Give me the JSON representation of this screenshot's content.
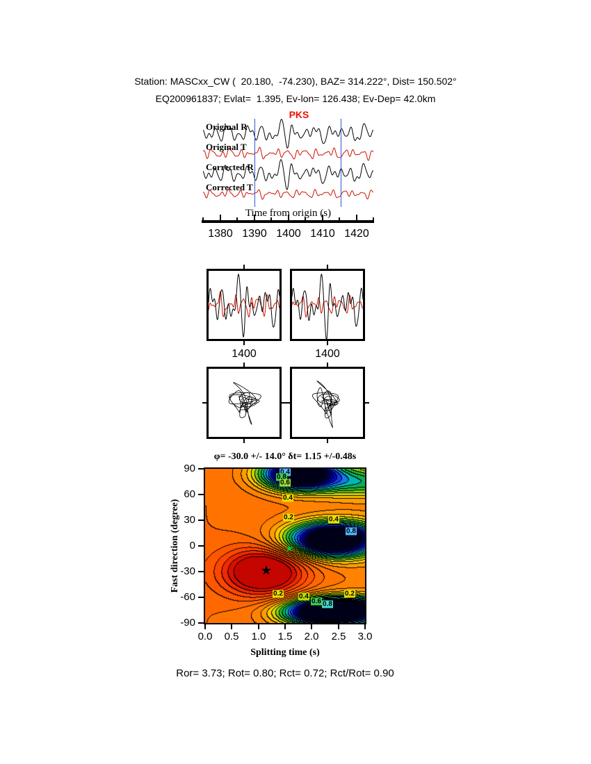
{
  "header": {
    "line1": "Station: MASCxx_CW (  20.180,  -74.230), BAZ= 314.222°, Dist= 150.502°",
    "line2": "EQ200961837; Evlat=  1.395, Ev-lon= 126.438; Ev-Dep= 42.0km"
  },
  "chart_data": [
    {
      "type": "line",
      "panel": "seismograms",
      "xlabel": "Time from origin (s)",
      "xlim": [
        1375,
        1425
      ],
      "xticks": [
        1380,
        1390,
        1400,
        1410,
        1420
      ],
      "phase_label": "PKS",
      "phase_color": "#ee1100",
      "window": [
        1390,
        1415.5
      ],
      "window_color": "#3355cc",
      "series": [
        {
          "name": "Original R",
          "color": "#000000",
          "comps": [
            [
              0.3,
              0.5,
              0.8
            ],
            [
              0.46,
              0.34,
              2.4
            ],
            [
              0.2,
              0.42,
              4.4
            ],
            [
              0.62,
              0.2,
              1.1
            ],
            [
              0.12,
              0.28,
              2.9
            ]
          ],
          "pulse": [
            1399.5,
            2.4,
            1.5,
            0.3,
            4.9
          ]
        },
        {
          "name": "Original T",
          "color": "#cc1100",
          "comps": [
            [
              0.36,
              0.3,
              1.9
            ],
            [
              0.55,
              0.2,
              0.4
            ],
            [
              0.23,
              0.22,
              3.3
            ],
            [
              0.74,
              0.12,
              5.1
            ],
            [
              0.14,
              0.16,
              0.6
            ]
          ]
        },
        {
          "name": "Corrected R",
          "color": "#000000",
          "comps": [
            [
              0.3,
              0.48,
              1.1
            ],
            [
              0.46,
              0.33,
              2.8
            ],
            [
              0.2,
              0.4,
              4.8
            ],
            [
              0.62,
              0.22,
              1.5
            ],
            [
              0.12,
              0.26,
              3.2
            ]
          ],
          "pulse": [
            1399.5,
            2.4,
            1.55,
            0.3,
            5.1
          ]
        },
        {
          "name": "Corrected T",
          "color": "#cc1100",
          "comps": [
            [
              0.36,
              0.26,
              2.6
            ],
            [
              0.55,
              0.16,
              1.2
            ],
            [
              0.23,
              0.18,
              4.0
            ],
            [
              0.74,
              0.1,
              5.9
            ],
            [
              0.14,
              0.12,
              1.4
            ]
          ]
        }
      ]
    },
    {
      "type": "heatmap",
      "panel": "splitting-misfit-surface",
      "title": "φ= -30.0 +/- 14.0° δt= 1.15 +/-0.48s",
      "xlabel": "Splitting time (s)",
      "ylabel": "Fast direction (degree)",
      "xlim": [
        0,
        3
      ],
      "ylim": [
        -90,
        90
      ],
      "xticks": [
        0,
        0.5,
        1,
        1.5,
        2,
        2.5,
        3
      ],
      "xtick_labels": [
        "0.0",
        "0.5",
        "1.0",
        "1.5",
        "2.0",
        "2.5",
        "3.0"
      ],
      "yticks": [
        90,
        60,
        30,
        0,
        -30,
        -60,
        -90
      ],
      "best": {
        "phi": -30.0,
        "phi_err": 14.0,
        "dt": 1.15,
        "dt_err": 0.48
      },
      "markers": [
        {
          "name": "best-fit-star",
          "dt": 1.15,
          "phi": -30,
          "color": "#000000",
          "size": 19
        },
        {
          "name": "secondary-star",
          "dt": 1.58,
          "phi": -4,
          "color": "#00cc44",
          "size": 13
        }
      ],
      "contour_labels": [
        {
          "dt": 1.5,
          "phi": 86,
          "text": "0.4",
          "bg": "#55bbff"
        },
        {
          "dt": 1.44,
          "phi": 80,
          "text": "0.8",
          "bg": "#44cc55"
        },
        {
          "dt": 1.5,
          "phi": 74,
          "text": "0.6",
          "bg": "#99dd33"
        },
        {
          "dt": 1.55,
          "phi": 56,
          "text": "0.4",
          "bg": "#eedd00"
        },
        {
          "dt": 1.57,
          "phi": 33,
          "text": "0.2",
          "bg": "#eedd00"
        },
        {
          "dt": 2.41,
          "phi": 31,
          "text": "0.4",
          "bg": "#eedd00"
        },
        {
          "dt": 2.74,
          "phi": 17,
          "text": "0.8",
          "bg": "#55bbff"
        },
        {
          "dt": 1.37,
          "phi": -56,
          "text": "0.2",
          "bg": "#eedd00"
        },
        {
          "dt": 1.85,
          "phi": -59,
          "text": "0.4",
          "bg": "#bbdd00"
        },
        {
          "dt": 2.09,
          "phi": -65,
          "text": "0.6",
          "bg": "#44cc55"
        },
        {
          "dt": 2.3,
          "phi": -68,
          "text": "0.8",
          "bg": "#44ddcc"
        },
        {
          "dt": 2.71,
          "phi": -56,
          "text": "0.2",
          "bg": "#eedd00"
        }
      ],
      "surface": {
        "base": 0.3,
        "slope": 0.02,
        "bumps": [
          {
            "cx": 2.4,
            "cy": 8,
            "sx": 0.6,
            "sy": 14,
            "amp": 0.95
          },
          {
            "cx": 1.75,
            "cy": 85,
            "sx": 0.5,
            "sy": 13,
            "amp": 0.9
          },
          {
            "cx": 2.3,
            "cy": -77,
            "sx": 0.6,
            "sy": 11,
            "amp": 0.9
          },
          {
            "cx": 1.1,
            "cy": -30,
            "sx": 0.55,
            "sy": 20,
            "amp": -0.45
          },
          {
            "cx": 3.0,
            "cy": 75,
            "sx": 0.7,
            "sy": 12,
            "amp": 0.3
          },
          {
            "cx": 3.0,
            "cy": -72,
            "sx": 0.7,
            "sy": 10,
            "amp": 0.3
          }
        ],
        "level_step": 0.05,
        "vmax": 1.05,
        "palette": [
          [
            0.0,
            "#bb0000"
          ],
          [
            0.08,
            "#dd1100"
          ],
          [
            0.16,
            "#ff4400"
          ],
          [
            0.26,
            "#ff6600"
          ],
          [
            0.38,
            "#ff8800"
          ],
          [
            0.46,
            "#ffcc00"
          ],
          [
            0.52,
            "#bbdd00"
          ],
          [
            0.58,
            "#33bb22"
          ],
          [
            0.66,
            "#00aa66"
          ],
          [
            0.7,
            "#00bbcc"
          ],
          [
            0.76,
            "#2255ff"
          ],
          [
            0.84,
            "#0000bb"
          ],
          [
            0.92,
            "#000055"
          ],
          [
            1.0,
            "#000000"
          ]
        ]
      }
    }
  ],
  "zoom_panels": {
    "left_tick_label": "1400",
    "right_tick_label": "1400",
    "window": [
      1387.5,
      1412.5
    ]
  },
  "hodogram_window": [
    1389,
    1414
  ],
  "footer": "Ror= 3.73; Rot= 0.80; Rct= 0.72; Rct/Rot= 0.90"
}
